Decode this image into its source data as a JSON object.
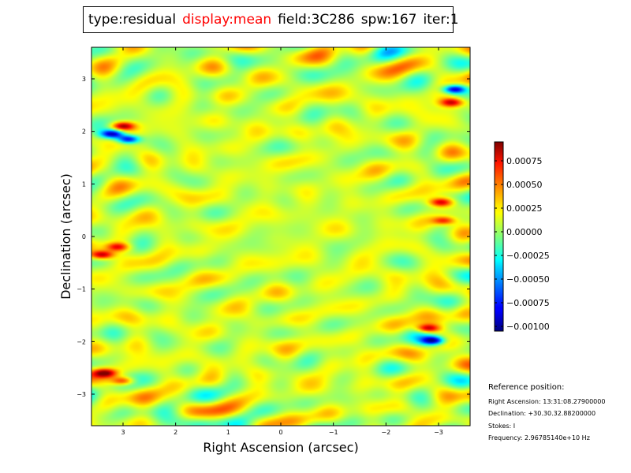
{
  "title_box": {
    "type": "type:residual",
    "display": "display:mean",
    "field": "field:3C286",
    "spw": "spw:167",
    "iter": "iter:1",
    "display_color": "#ff0000"
  },
  "chart_data": {
    "type": "heatmap",
    "xlabel": "Right Ascension (arcsec)",
    "ylabel": "Declination (arcsec)",
    "xlim": [
      3.6,
      -3.6
    ],
    "ylim": [
      -3.6,
      3.6
    ],
    "x_ticks": [
      3,
      2,
      1,
      0,
      -1,
      -2,
      -3
    ],
    "x_tick_labels": [
      "3",
      "2",
      "1",
      "0",
      "−1",
      "−2",
      "−3"
    ],
    "y_ticks": [
      3,
      2,
      1,
      0,
      -1,
      -2,
      -3
    ],
    "y_tick_labels": [
      "3",
      "2",
      "1",
      "0",
      "−1",
      "−2",
      "−3"
    ],
    "colormap": "jet",
    "colorbar": {
      "vmin": -0.00105,
      "vmax": 0.00095,
      "ticks": [
        0.00075,
        0.0005,
        0.00025,
        0.0,
        -0.00025,
        -0.0005,
        -0.00075,
        -0.001
      ],
      "tick_labels": [
        "0.00075",
        "0.00050",
        "0.00025",
        "0.00000",
        "−0.00025",
        "−0.00050",
        "−0.00075",
        "−0.00100"
      ]
    },
    "features": [
      {
        "x": 3.2,
        "y": 1.95,
        "value": -0.00095
      },
      {
        "x": 2.9,
        "y": 1.85,
        "value": -0.0009
      },
      {
        "x": 3.0,
        "y": 2.1,
        "value": 0.0009
      },
      {
        "x": 3.4,
        "y": -0.35,
        "value": 0.0009
      },
      {
        "x": 3.1,
        "y": -0.2,
        "value": 0.0007
      },
      {
        "x": 3.35,
        "y": -2.6,
        "value": 0.0009
      },
      {
        "x": 3.0,
        "y": -2.75,
        "value": 0.00075
      },
      {
        "x": -3.3,
        "y": 2.8,
        "value": -0.0009
      },
      {
        "x": -3.25,
        "y": 2.55,
        "value": 0.0008
      },
      {
        "x": -2.8,
        "y": -1.75,
        "value": 0.0009
      },
      {
        "x": -2.9,
        "y": -1.98,
        "value": -0.00095
      },
      {
        "x": -3.05,
        "y": 0.65,
        "value": 0.0008
      },
      {
        "x": -3.1,
        "y": 0.3,
        "value": 0.0007
      },
      {
        "x": 0.0,
        "y": 0.0,
        "value": 0.0001
      }
    ]
  },
  "reference": {
    "heading": "Reference position:",
    "ra": "Right Ascension: 13:31:08.27900000",
    "dec": "Declination: +30.30.32.88200000",
    "stokes": "Stokes: I",
    "freq": "Frequency: 2.96785140e+10 Hz"
  }
}
